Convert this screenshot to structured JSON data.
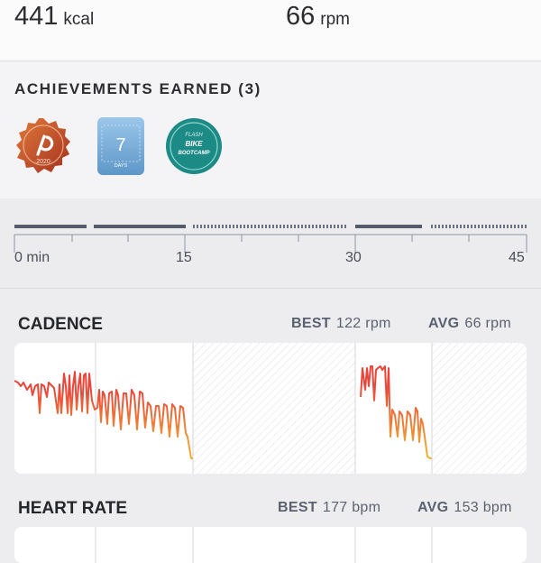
{
  "stats": {
    "calories": {
      "value": "441",
      "unit": "kcal"
    },
    "cadence_avg": {
      "value": "66",
      "unit": "rpm"
    }
  },
  "achievements": {
    "title": "ACHIEVEMENTS EARNED (3)",
    "badges": [
      {
        "name": "peloton-2020-badge",
        "text": "·2020·",
        "color": "#c0492a"
      },
      {
        "name": "streak-7-days-badge",
        "number": "7",
        "text": "DAYS",
        "color": "#7fb3d8"
      },
      {
        "name": "flash-bike-bootcamp-badge",
        "line1": "FLASH",
        "line2": "BIKE",
        "line3": "BOOTCAMP",
        "color": "#1f8f88"
      }
    ]
  },
  "timeline": {
    "labels": [
      "0 min",
      "15",
      "30",
      "45"
    ]
  },
  "cadence": {
    "title": "CADENCE",
    "best_label": "BEST",
    "best_value": "122 rpm",
    "avg_label": "AVG",
    "avg_value": "66 rpm"
  },
  "heart_rate": {
    "title": "HEART RATE",
    "best_label": "BEST",
    "best_value": "177 bpm",
    "avg_label": "AVG",
    "avg_value": "153 bpm"
  },
  "colors": {
    "line_start": "#e8463a",
    "line_end": "#f2b233",
    "timeline_bar": "#5a6170"
  }
}
